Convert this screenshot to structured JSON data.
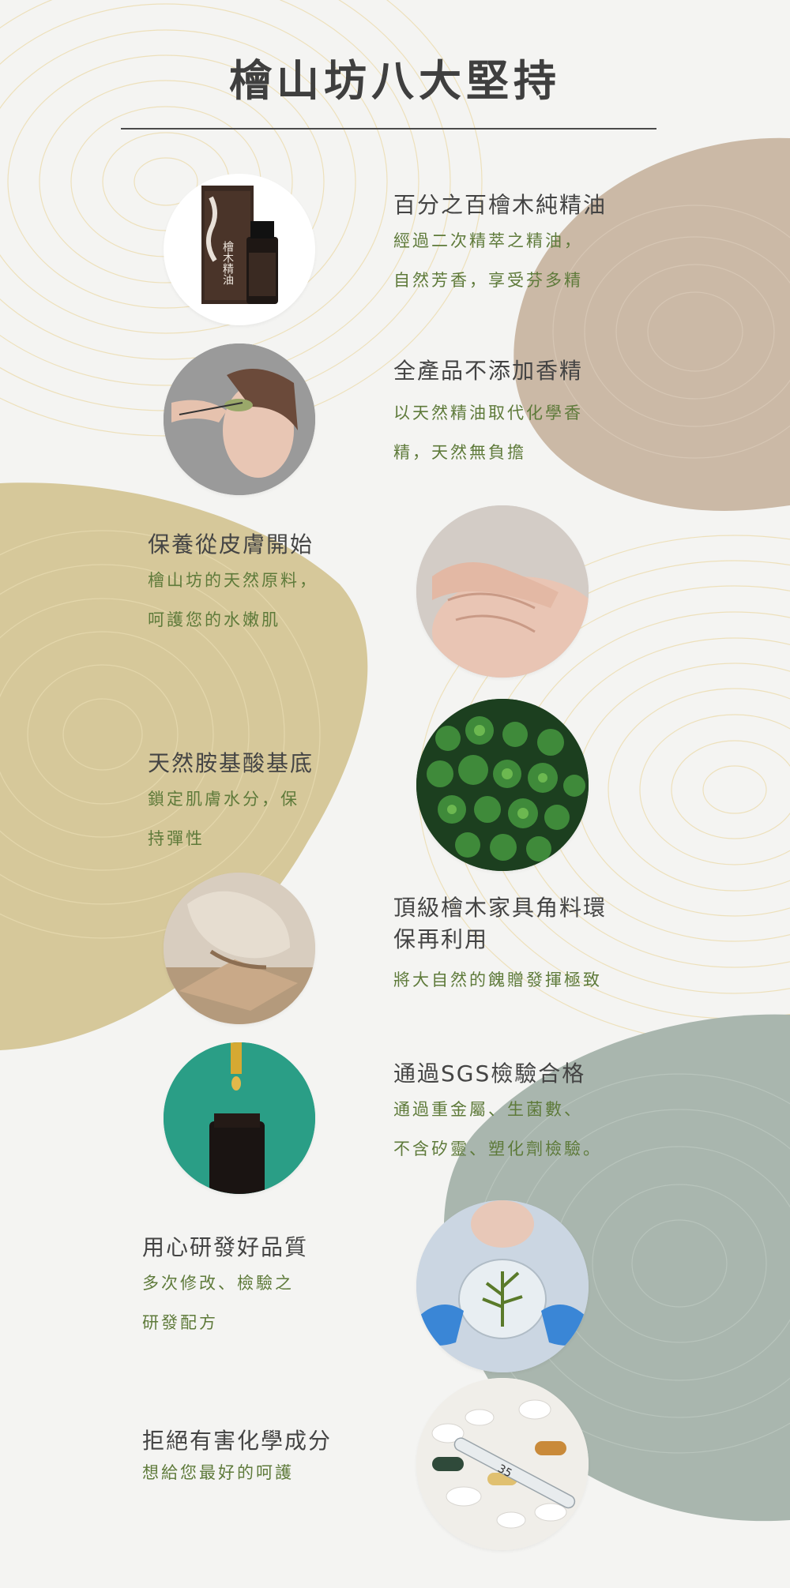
{
  "title": "檜山坊八大堅持",
  "colors": {
    "background": "#f4f4f2",
    "heading": "#444444",
    "description": "#5e7a3a",
    "blob_tan": "#cbb9a6",
    "blob_gold": "#d6c89a",
    "blob_sage": "#a9b6ae",
    "contour": "#e6d5a8"
  },
  "items": [
    {
      "heading": "百分之百檜木純精油",
      "desc": [
        "經過二次精萃之精油，",
        "自然芳香，享受芬多精"
      ],
      "image": "essential-oil-bottle"
    },
    {
      "heading": "全產品不添加香精",
      "desc": [
        "以天然精油取代化學香",
        "精，天然無負擔"
      ],
      "image": "woman-with-leaf"
    },
    {
      "heading": "保養從皮膚開始",
      "desc": [
        "檜山坊的天然原料，",
        "呵護您的水嫩肌"
      ],
      "image": "hand-on-skin"
    },
    {
      "heading": "天然胺基酸基底",
      "desc": [
        "鎖定肌膚水分，保",
        "持彈性"
      ],
      "image": "forest-aerial"
    },
    {
      "heading": "頂級檜木家具角料環\n保再利用",
      "desc": [
        "將大自然的餽贈發揮極致"
      ],
      "image": "wood-carving"
    },
    {
      "heading": "通過SGS檢驗合格",
      "desc": [
        "通過重金屬、生菌數、",
        "不含矽靈、塑化劑檢驗。"
      ],
      "image": "dropper-bottle"
    },
    {
      "heading": "用心研發好品質",
      "desc": [
        "多次修改、檢驗之",
        "研發配方"
      ],
      "image": "petri-dish-plant"
    },
    {
      "heading": "拒絕有害化學成分",
      "desc": [
        "想給您最好的呵護"
      ],
      "image": "pills-thermometer"
    }
  ],
  "bottle_label": "檜木精油",
  "thermometer_text": "35"
}
